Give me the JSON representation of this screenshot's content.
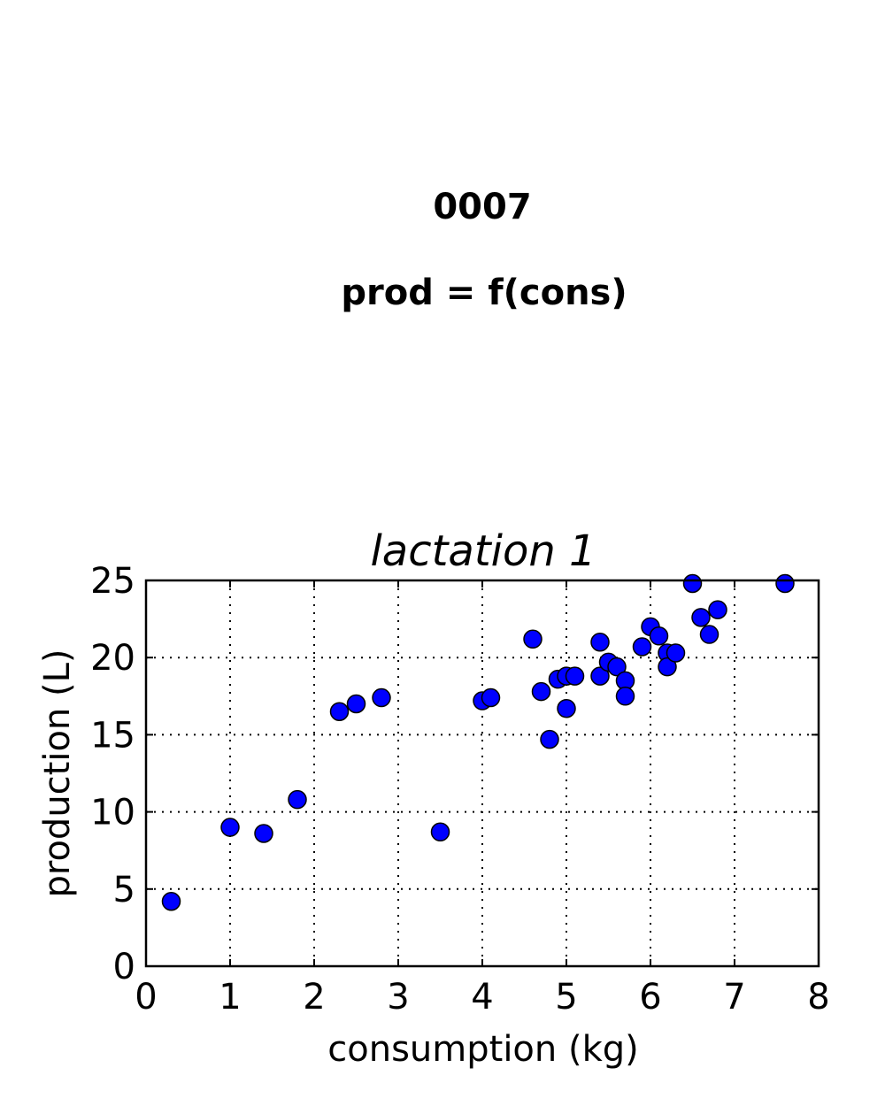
{
  "figure": {
    "suptitle_line1": "0007",
    "suptitle_line2": "prod = f(cons)"
  },
  "chart_data": {
    "type": "scatter",
    "title": "lactation 1",
    "xlabel": "consumption (kg)",
    "ylabel": "production (L)",
    "xlim": [
      0,
      8
    ],
    "ylim": [
      0,
      25
    ],
    "xticks": [
      "0",
      "1",
      "2",
      "3",
      "4",
      "5",
      "6",
      "7",
      "8"
    ],
    "yticks": [
      "0",
      "5",
      "10",
      "15",
      "20",
      "25"
    ],
    "grid": true,
    "marker_color": "#0000ff",
    "points": [
      {
        "x": 0.3,
        "y": 4.2
      },
      {
        "x": 1.0,
        "y": 9.0
      },
      {
        "x": 1.4,
        "y": 8.6
      },
      {
        "x": 1.8,
        "y": 10.8
      },
      {
        "x": 2.3,
        "y": 16.5
      },
      {
        "x": 2.5,
        "y": 17.0
      },
      {
        "x": 2.8,
        "y": 17.4
      },
      {
        "x": 3.5,
        "y": 8.7
      },
      {
        "x": 4.0,
        "y": 17.2
      },
      {
        "x": 4.1,
        "y": 17.4
      },
      {
        "x": 4.6,
        "y": 21.2
      },
      {
        "x": 4.7,
        "y": 17.8
      },
      {
        "x": 4.8,
        "y": 14.7
      },
      {
        "x": 4.9,
        "y": 18.6
      },
      {
        "x": 5.0,
        "y": 18.8
      },
      {
        "x": 5.0,
        "y": 16.7
      },
      {
        "x": 5.1,
        "y": 18.8
      },
      {
        "x": 5.4,
        "y": 21.0
      },
      {
        "x": 5.4,
        "y": 18.8
      },
      {
        "x": 5.5,
        "y": 19.7
      },
      {
        "x": 5.6,
        "y": 19.4
      },
      {
        "x": 5.7,
        "y": 18.5
      },
      {
        "x": 5.7,
        "y": 17.5
      },
      {
        "x": 5.9,
        "y": 20.7
      },
      {
        "x": 6.0,
        "y": 22.0
      },
      {
        "x": 6.1,
        "y": 21.4
      },
      {
        "x": 6.2,
        "y": 20.3
      },
      {
        "x": 6.2,
        "y": 19.4
      },
      {
        "x": 6.3,
        "y": 20.3
      },
      {
        "x": 6.5,
        "y": 24.8
      },
      {
        "x": 6.6,
        "y": 22.6
      },
      {
        "x": 6.7,
        "y": 21.5
      },
      {
        "x": 6.8,
        "y": 23.1
      },
      {
        "x": 7.6,
        "y": 24.8
      }
    ]
  }
}
